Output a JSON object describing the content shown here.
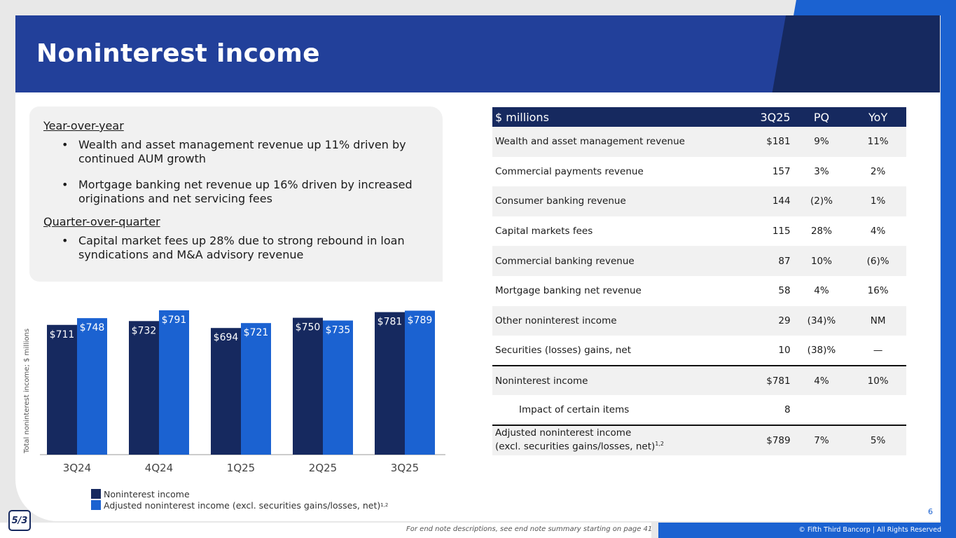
{
  "title": "Noninterest income",
  "commentary": {
    "yoy_heading": "Year-over-year",
    "yoy_bullets": [
      "Wealth and asset management revenue up 11% driven by continued AUM growth",
      "Mortgage banking net revenue up 16% driven by increased originations and net servicing fees"
    ],
    "qoq_heading": "Quarter-over-quarter",
    "qoq_bullets": [
      "Capital market fees up 28% due to strong rebound in loan syndications and M&A advisory revenue"
    ]
  },
  "chart_data": {
    "type": "bar",
    "ylabel": "Total noninterest income; $ millions",
    "categories": [
      "3Q24",
      "4Q24",
      "1Q25",
      "2Q25",
      "3Q25"
    ],
    "series": [
      {
        "name": "Noninterest income",
        "color": "#16295f",
        "values": [
          711,
          732,
          694,
          750,
          781
        ],
        "labels": [
          "$711",
          "$732",
          "$694",
          "$750",
          "$781"
        ]
      },
      {
        "name": "Adjusted noninterest income (excl. securities gains/losses, net)",
        "color": "#1b62d1",
        "values": [
          748,
          791,
          721,
          735,
          789
        ],
        "labels": [
          "$748",
          "$791",
          "$721",
          "$735",
          "$789"
        ]
      }
    ],
    "legend_superscript": "1,2"
  },
  "table": {
    "headers": [
      "$ millions",
      "3Q25",
      "PQ",
      "YoY"
    ],
    "rows": [
      {
        "label": "Wealth and asset management revenue",
        "q": "$181",
        "pq": "9%",
        "yoy": "11%"
      },
      {
        "label": "Commercial payments revenue",
        "q": "157",
        "pq": "3%",
        "yoy": "2%"
      },
      {
        "label": "Consumer banking revenue",
        "q": "144",
        "pq": "(2)%",
        "yoy": "1%"
      },
      {
        "label": "Capital markets fees",
        "q": "115",
        "pq": "28%",
        "yoy": "4%"
      },
      {
        "label": "Commercial banking revenue",
        "q": "87",
        "pq": "10%",
        "yoy": "(6)%"
      },
      {
        "label": "Mortgage banking net revenue",
        "q": "58",
        "pq": "4%",
        "yoy": "16%"
      },
      {
        "label": "Other noninterest income",
        "q": "29",
        "pq": "(34)%",
        "yoy": "NM"
      },
      {
        "label": "Securities (losses) gains, net",
        "q": "10",
        "pq": "(38)%",
        "yoy": "—"
      },
      {
        "label": "Noninterest income",
        "q": "$781",
        "pq": "4%",
        "yoy": "10%"
      },
      {
        "label": "Impact of certain items",
        "q": "8",
        "pq": "",
        "yoy": ""
      },
      {
        "label_line1": "Adjusted noninterest income",
        "label_line2": "(excl. securities gains/losses, net)",
        "label_sup": "1,2",
        "q": "$789",
        "pq": "7%",
        "yoy": "5%"
      }
    ]
  },
  "footer": {
    "footnote": "For end note descriptions, see end note summary starting on page 41",
    "copyright": "© Fifth Third Bancorp | All Rights Reserved",
    "page": "6",
    "logo_text": "5/3"
  },
  "colors": {
    "navy": "#16295f",
    "royal": "#22409a",
    "bright_blue": "#1b62d1"
  }
}
